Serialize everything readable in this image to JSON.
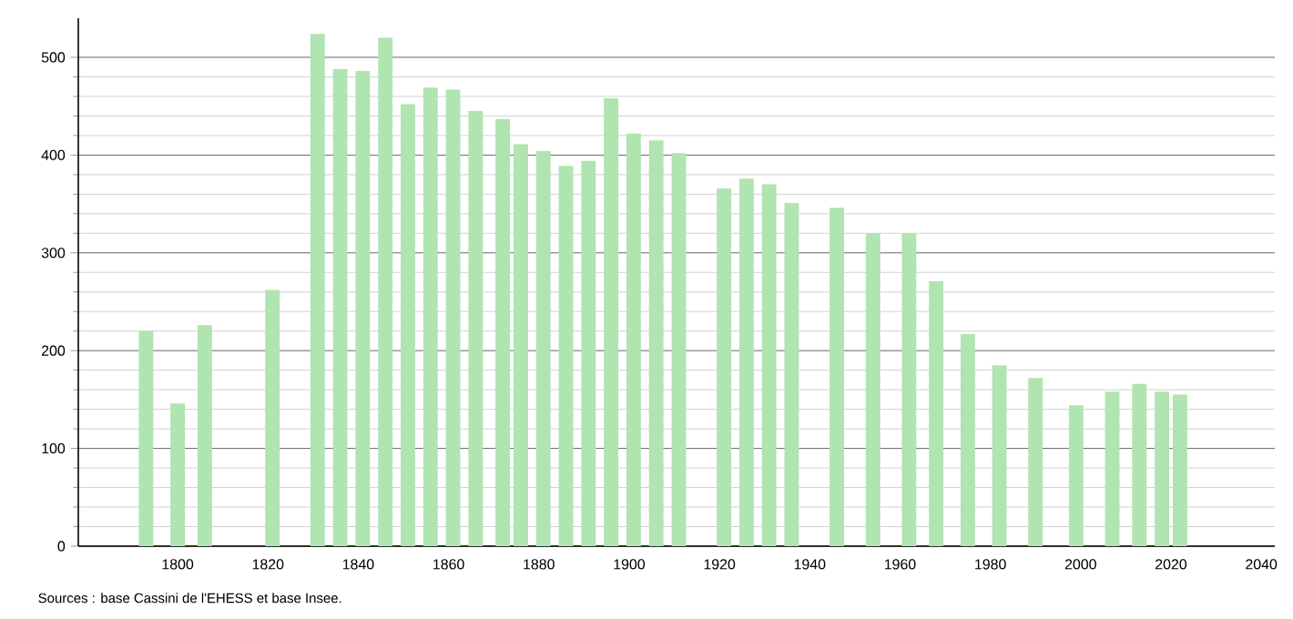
{
  "chart_data": {
    "type": "bar",
    "x": [
      1793,
      1800,
      1806,
      1821,
      1831,
      1836,
      1841,
      1846,
      1851,
      1856,
      1861,
      1866,
      1872,
      1876,
      1881,
      1886,
      1891,
      1896,
      1901,
      1906,
      1911,
      1921,
      1926,
      1931,
      1936,
      1946,
      1954,
      1962,
      1968,
      1975,
      1982,
      1990,
      1999,
      2007,
      2013,
      2018,
      2022
    ],
    "values": [
      220,
      146,
      226,
      262,
      524,
      488,
      486,
      520,
      452,
      469,
      467,
      445,
      437,
      411,
      404,
      389,
      394,
      458,
      422,
      415,
      402,
      366,
      376,
      370,
      351,
      346,
      320,
      320,
      271,
      217,
      185,
      172,
      144,
      158,
      166,
      158,
      155
    ],
    "color": "#b0e4b0",
    "xlim": [
      1778,
      2043
    ],
    "xticks": [
      1800,
      1820,
      1840,
      1860,
      1880,
      1900,
      1920,
      1940,
      1960,
      1980,
      2000,
      2020,
      2040
    ],
    "ylim": [
      0,
      540
    ],
    "yticks": [
      0,
      100,
      200,
      300,
      400,
      500
    ],
    "grid": "y",
    "annotations": [
      "Sources : base Cassini de l'EHESS et base Insee."
    ]
  }
}
